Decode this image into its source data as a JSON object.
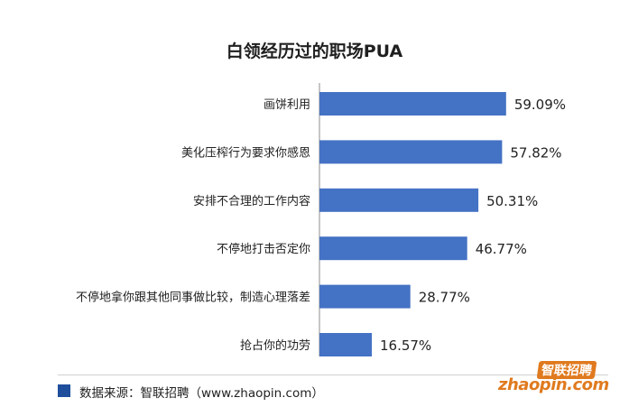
{
  "chart_data": {
    "type": "bar",
    "orientation": "horizontal",
    "title": "白领经历过的职场PUA",
    "categories": [
      "画饼利用",
      "美化压榨行为要求你感恩",
      "安排不合理的工作内容",
      "不停地打击否定你",
      "不停地拿你跟其他同事做比较，制造心理落差",
      "抢占你的功劳"
    ],
    "values": [
      59.09,
      57.82,
      50.31,
      46.77,
      28.77,
      16.57
    ],
    "value_labels": [
      "59.09%",
      "57.82%",
      "50.31%",
      "46.77%",
      "28.77%",
      "16.57%"
    ],
    "xlim": [
      0,
      60
    ],
    "grid": false,
    "color": "#4472c4"
  },
  "footer": {
    "source_text": "数据来源：智联招聘（www.zhaopin.com）",
    "marker_color": "#1f4e9c"
  },
  "logo": {
    "cn_text": "智联招聘",
    "en_text": "zhaopin.com",
    "color": "#e07a1f"
  }
}
